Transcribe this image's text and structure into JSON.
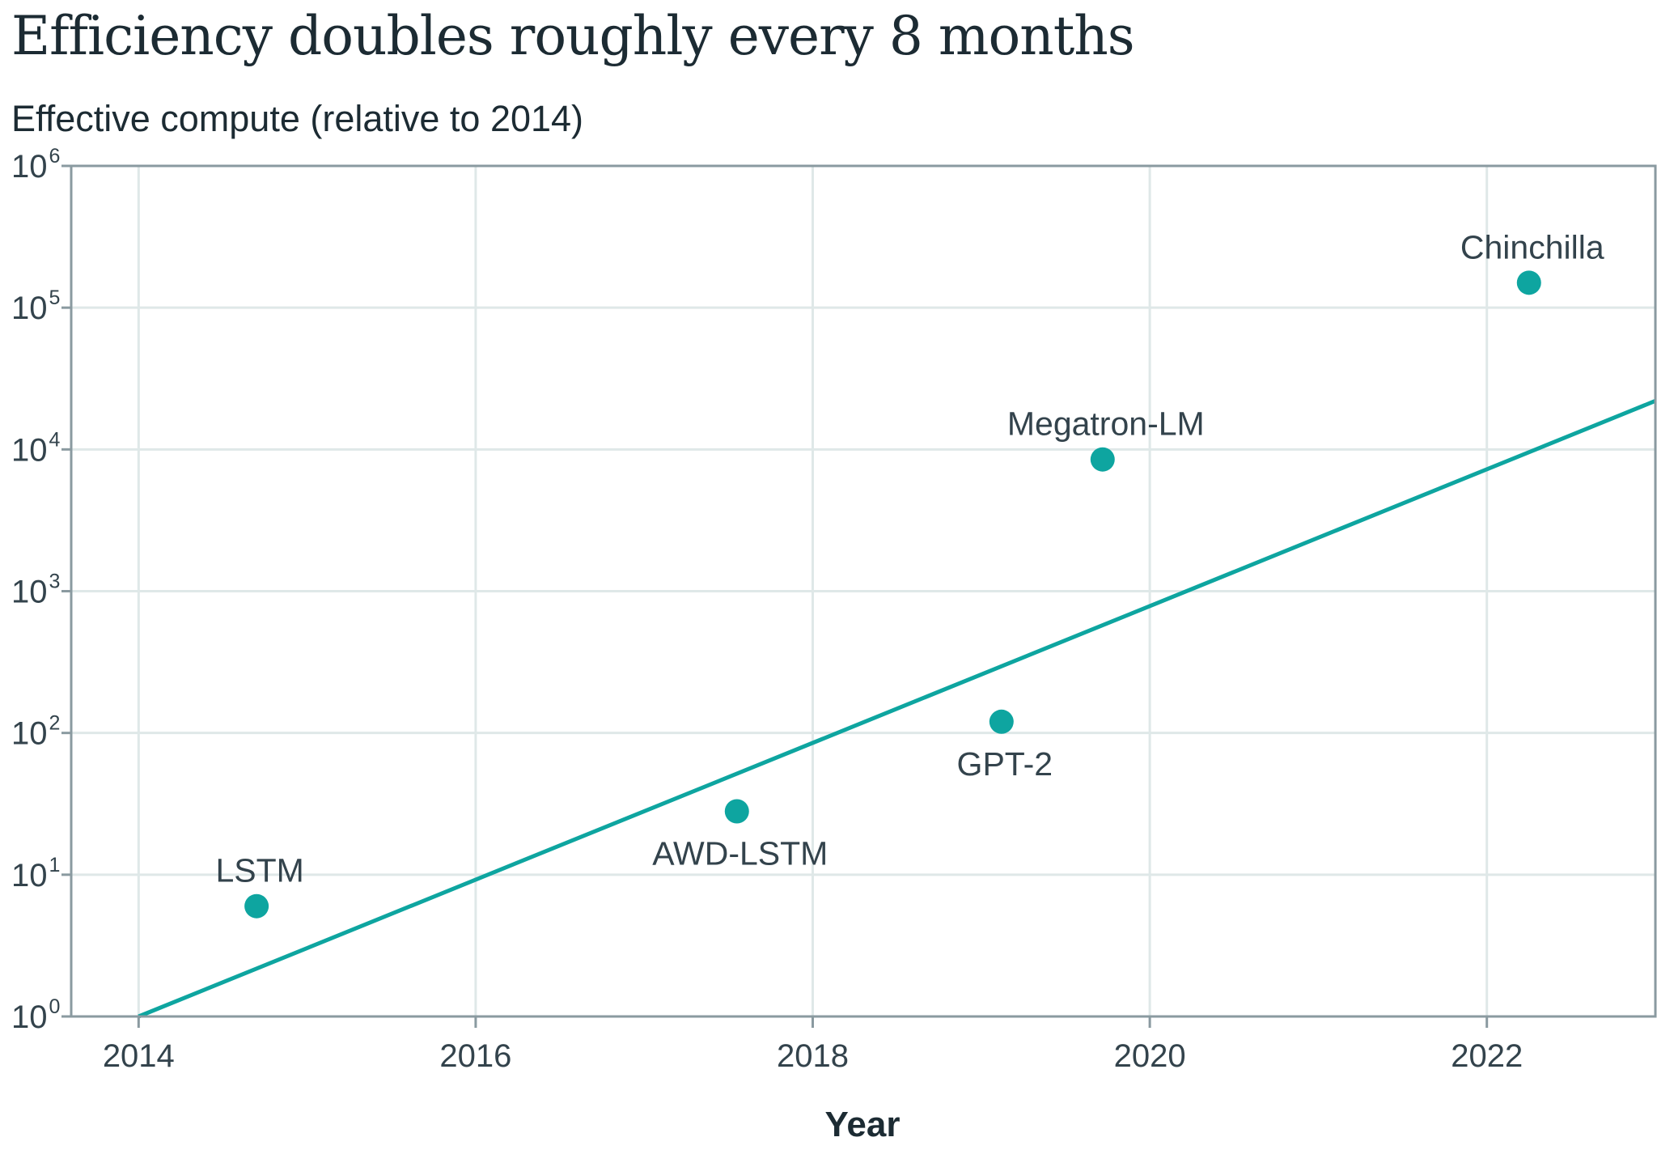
{
  "chart_data": {
    "type": "scatter",
    "title": "Efficiency doubles roughly every 8 months",
    "ylabel": "Effective compute (relative to 2014)",
    "xlabel": "Year",
    "x_ticks": [
      "2014",
      "2016",
      "2018",
      "2020",
      "2022"
    ],
    "y_ticks": [
      {
        "base": "10",
        "exp": "0"
      },
      {
        "base": "10",
        "exp": "1"
      },
      {
        "base": "10",
        "exp": "2"
      },
      {
        "base": "10",
        "exp": "3"
      },
      {
        "base": "10",
        "exp": "4"
      },
      {
        "base": "10",
        "exp": "5"
      },
      {
        "base": "10",
        "exp": "6"
      }
    ],
    "yscale": "log",
    "xlim": [
      2013.6,
      2023.0
    ],
    "ylim": [
      1,
      1000000
    ],
    "grid": true,
    "colors": {
      "accent": "#0ea5a0",
      "grid": "#dfe8e8",
      "axis": "#8a9aa0"
    },
    "points": [
      {
        "label": "LSTM",
        "x": 2014.7,
        "y": 6,
        "label_pos": "above"
      },
      {
        "label": "AWD-LSTM",
        "x": 2017.55,
        "y": 28,
        "label_pos": "below"
      },
      {
        "label": "GPT-2",
        "x": 2019.12,
        "y": 120,
        "label_pos": "below"
      },
      {
        "label": "Megatron-LM",
        "x": 2019.72,
        "y": 8500,
        "label_pos": "above"
      },
      {
        "label": "Chinchilla",
        "x": 2022.25,
        "y": 150000,
        "label_pos": "above"
      }
    ],
    "trend": {
      "x": [
        2014.0,
        2023.0
      ],
      "y": [
        1,
        22000
      ]
    }
  }
}
